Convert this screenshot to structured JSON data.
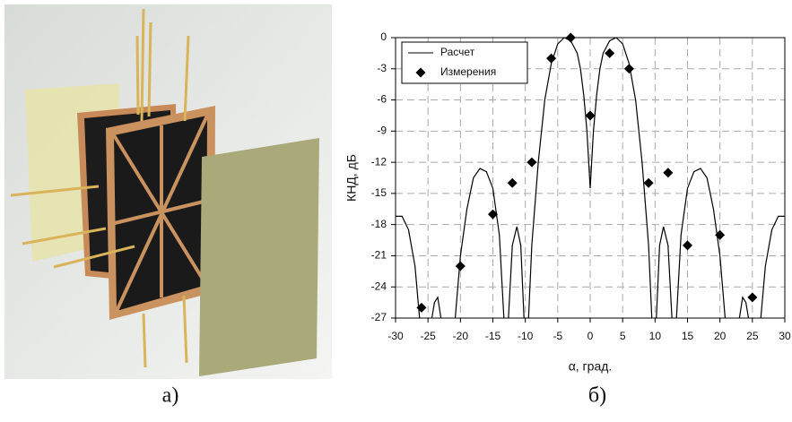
{
  "figure": {
    "captions": [
      "а)",
      "б)"
    ]
  },
  "chart_data": {
    "type": "line",
    "xlabel": "α, град.",
    "ylabel": "КНД, дБ",
    "xlim": [
      -30,
      30
    ],
    "ylim": [
      -27,
      0
    ],
    "xticks": [
      -30,
      -25,
      -20,
      -15,
      -10,
      -5,
      0,
      5,
      10,
      15,
      20,
      25,
      30
    ],
    "yticks": [
      0,
      -3,
      -6,
      -9,
      -12,
      -15,
      -18,
      -21,
      -24,
      -27
    ],
    "grid": true,
    "legend": "upper-left",
    "series": [
      {
        "name": "Расчет",
        "type": "line",
        "color": "#000000",
        "x": [
          -30,
          -29,
          -28,
          -27,
          -26.3,
          -25.3,
          -24.4,
          -24,
          -23.5,
          -23,
          -22,
          -20.8,
          -20,
          -19,
          -18,
          -17,
          -16,
          -15,
          -14,
          -13.3,
          -13,
          -12.6,
          -12,
          -11.3,
          -10.7,
          -10.2,
          -9.9,
          -9.5,
          -9,
          -8,
          -7,
          -6,
          -5,
          -4,
          -3,
          -2,
          -1.5,
          -1,
          -0.5,
          0,
          0.5,
          1,
          1.5,
          2,
          3,
          4,
          5,
          6,
          7,
          8,
          9,
          9.5,
          9.9,
          10.2,
          10.7,
          11.3,
          12,
          12.6,
          13,
          13.3,
          14,
          15,
          16,
          17,
          18,
          19,
          20,
          20.8,
          22,
          23,
          23.5,
          24,
          24.4,
          25.3,
          26.3,
          27,
          28,
          29,
          30
        ],
        "values": [
          -17.2,
          -17.2,
          -18.5,
          -22,
          -27,
          null,
          -27,
          -25.5,
          -25,
          -27,
          null,
          -27,
          -21,
          -16.5,
          -13.5,
          -12.6,
          -12.9,
          -14.5,
          -19,
          -27,
          null,
          -27,
          -20,
          -18.2,
          -20,
          -27,
          null,
          -27,
          -20,
          -12,
          -6,
          -2.5,
          -0.6,
          0,
          -0.3,
          -1.5,
          -3,
          -5.5,
          -9,
          -14.5,
          -9,
          -5.5,
          -3,
          -1.5,
          -0.3,
          0,
          -0.6,
          -2.5,
          -6,
          -12,
          -20,
          -27,
          null,
          -27,
          -20,
          -18.2,
          -20,
          -27,
          null,
          -27,
          -19,
          -14.5,
          -12.9,
          -12.6,
          -13.5,
          -16.5,
          -21,
          -27,
          null,
          -27,
          -25,
          -25.5,
          -27,
          null,
          -27,
          -22,
          -18.5,
          -17.2,
          -17.2
        ]
      },
      {
        "name": "Измерения",
        "type": "scatter",
        "color": "#000000",
        "x": [
          -26,
          -20,
          -15,
          -12,
          -9,
          -6,
          -3,
          0,
          3,
          6,
          9,
          12,
          15,
          20,
          25
        ],
        "values": [
          -26,
          -22,
          -17,
          -14,
          -12,
          -2,
          0,
          -7.5,
          -1.5,
          -3,
          -14,
          -13,
          -20,
          -19,
          -25
        ]
      }
    ]
  }
}
